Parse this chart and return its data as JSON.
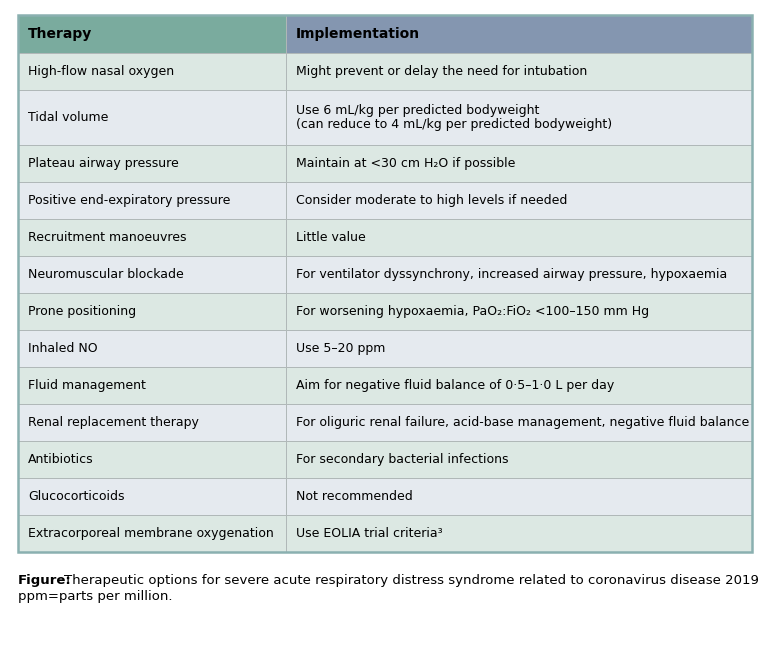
{
  "header": [
    "Therapy",
    "Implementation"
  ],
  "rows": [
    [
      "High-flow nasal oxygen",
      "Might prevent or delay the need for intubation"
    ],
    [
      "Tidal volume",
      "Use 6 mL/kg per predicted bodyweight\n(can reduce to 4 mL/kg per predicted bodyweight)"
    ],
    [
      "Plateau airway pressure",
      "Maintain at <30 cm H₂O if possible"
    ],
    [
      "Positive end-expiratory pressure",
      "Consider moderate to high levels if needed"
    ],
    [
      "Recruitment manoeuvres",
      "Little value"
    ],
    [
      "Neuromuscular blockade",
      "For ventilator dyssynchrony, increased airway pressure, hypoxaemia"
    ],
    [
      "Prone positioning",
      "For worsening hypoxaemia, PaO₂:FiO₂ <100–150 mm Hg"
    ],
    [
      "Inhaled NO",
      "Use 5–20 ppm"
    ],
    [
      "Fluid management",
      "Aim for negative fluid balance of 0·5–1·0 L per day"
    ],
    [
      "Renal replacement therapy",
      "For oliguric renal failure, acid-base management, negative fluid balance"
    ],
    [
      "Antibiotics",
      "For secondary bacterial infections"
    ],
    [
      "Glucocorticoids",
      "Not recommended"
    ],
    [
      "Extracorporeal membrane oxygenation",
      "Use EOLIA trial criteria³"
    ]
  ],
  "header_therapy_color": "#7aab9e",
  "header_impl_color": "#8496b0",
  "row_even_color": "#dce8e3",
  "row_odd_color": "#e5eaef",
  "border_color": "#b0b8b8",
  "outer_border_color": "#8ab0b0",
  "caption_bold": "Figure:",
  "caption_normal": " Therapeutic options for severe acute respiratory distress syndrome related to coronavirus disease 2019",
  "caption_line2": "ppm=parts per million.",
  "col_split": 0.365,
  "fig_width": 7.68,
  "fig_height": 6.65,
  "font_size": 9.0,
  "header_font_size": 10.0
}
